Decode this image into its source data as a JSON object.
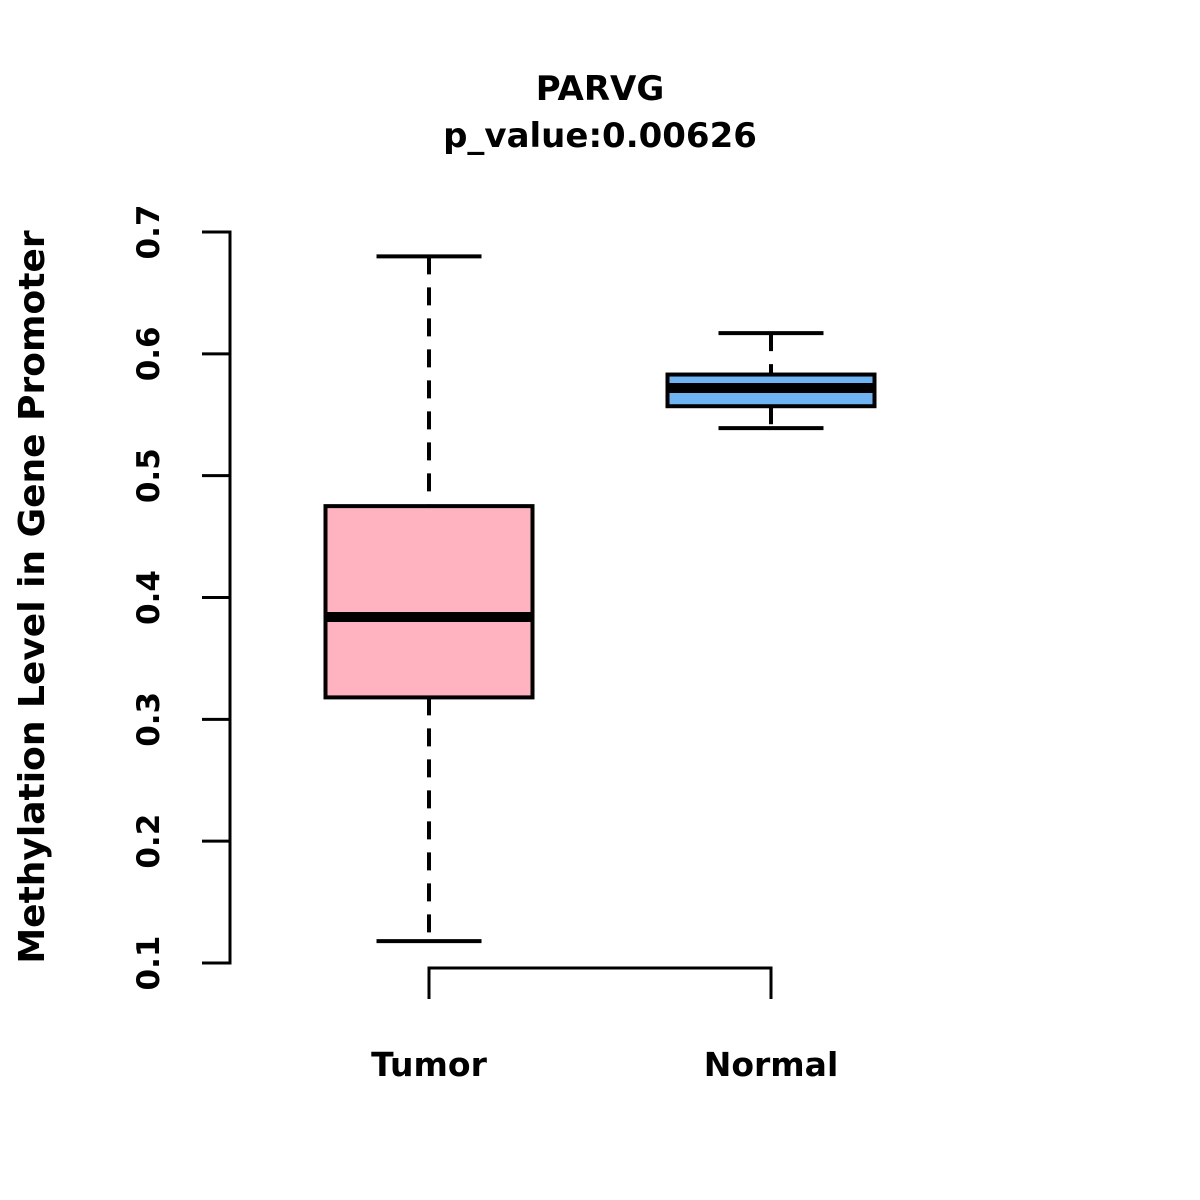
{
  "figure": {
    "background": "#ffffff",
    "line_color": "#000000"
  },
  "chart_data": {
    "type": "boxplot",
    "title": "PARVG",
    "subtitle": "p_value:0.00626",
    "p_value": "0.00626",
    "ylabel": "Methylation Level in Gene Promoter",
    "xlabel": "",
    "ylim": [
      0.1,
      0.7
    ],
    "yticks": [
      0.1,
      0.2,
      0.3,
      0.4,
      0.5,
      0.6,
      0.7
    ],
    "grid": false,
    "legend": "none",
    "whisker_style": "dashed",
    "categories": [
      "Tumor",
      "Normal"
    ],
    "series": [
      {
        "name": "Tumor",
        "box_color": "#FFB3C1",
        "border_color": "#000000",
        "whisker_low": 0.118,
        "q1": 0.318,
        "median": 0.384,
        "q3": 0.475,
        "whisker_high": 0.68
      },
      {
        "name": "Normal",
        "box_color": "#6EB4F2",
        "border_color": "#000000",
        "whisker_low": 0.539,
        "q1": 0.557,
        "median": 0.572,
        "q3": 0.583,
        "whisker_high": 0.617
      }
    ]
  }
}
